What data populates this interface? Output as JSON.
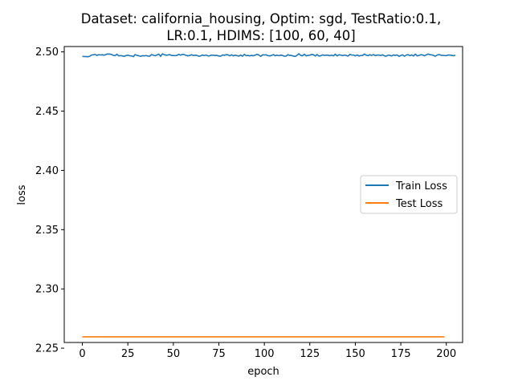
{
  "chart_data": {
    "type": "line",
    "title_lines": [
      "Dataset: california_housing, Optim: sgd, TestRatio:0.1,",
      "LR:0.1, HDIMS: [100, 60, 40]"
    ],
    "xlabel": "epoch",
    "ylabel": "loss",
    "xlim": [
      -9.95,
      208.95
    ],
    "ylim": [
      2.2548,
      2.5045
    ],
    "xticks": [
      0,
      25,
      50,
      75,
      100,
      125,
      150,
      175,
      200
    ],
    "xtick_labels": [
      "0",
      "25",
      "50",
      "75",
      "100",
      "125",
      "150",
      "175",
      "200"
    ],
    "yticks": [
      2.25,
      2.3,
      2.35,
      2.4,
      2.45,
      2.5
    ],
    "ytick_labels": [
      "2.25",
      "2.30",
      "2.35",
      "2.40",
      "2.45",
      "2.50"
    ],
    "grid": false,
    "legend_position": "center-right",
    "series": [
      {
        "name": "Train Loss",
        "color": "#1f77b4",
        "x_start": 0,
        "x_step": 1,
        "values": [
          2.4962,
          2.4961,
          2.496,
          2.4959,
          2.4962,
          2.4973,
          2.4975,
          2.4978,
          2.497,
          2.4976,
          2.4974,
          2.4975,
          2.4972,
          2.4978,
          2.4982,
          2.4981,
          2.4978,
          2.4971,
          2.4968,
          2.498,
          2.4966,
          2.4969,
          2.4966,
          2.4962,
          2.4969,
          2.4972,
          2.4967,
          2.4966,
          2.496,
          2.4977,
          2.497,
          2.4967,
          2.4962,
          2.4968,
          2.4966,
          2.4969,
          2.4965,
          2.4963,
          2.4977,
          2.4972,
          2.4967,
          2.4973,
          2.4981,
          2.4962,
          2.4983,
          2.4976,
          2.4972,
          2.4973,
          2.4977,
          2.4969,
          2.4969,
          2.4968,
          2.497,
          2.4979,
          2.4972,
          2.4979,
          2.4977,
          2.497,
          2.4967,
          2.4969,
          2.4976,
          2.497,
          2.4972,
          2.497,
          2.4963,
          2.4966,
          2.4974,
          2.4969,
          2.4973,
          2.4966,
          2.4967,
          2.4972,
          2.4971,
          2.4969,
          2.497,
          2.4965,
          2.4963,
          2.4974,
          2.4971,
          2.4976,
          2.4975,
          2.4967,
          2.4975,
          2.4966,
          2.4972,
          2.4968,
          2.4964,
          2.4973,
          2.4963,
          2.4979,
          2.4968,
          2.497,
          2.4966,
          2.497,
          2.4967,
          2.4972,
          2.4979,
          2.4973,
          2.4962,
          2.4975,
          2.4973,
          2.4975,
          2.4968,
          2.4966,
          2.497,
          2.4977,
          2.4967,
          2.4972,
          2.4968,
          2.4972,
          2.497,
          2.4963,
          2.4965,
          2.4976,
          2.497,
          2.497,
          2.4964,
          2.4962,
          2.4971,
          2.4984,
          2.497,
          2.4967,
          2.498,
          2.4966,
          2.497,
          2.4972,
          2.4978,
          2.4976,
          2.4965,
          2.4977,
          2.4965,
          2.4967,
          2.4975,
          2.497,
          2.4972,
          2.4973,
          2.4967,
          2.4972,
          2.4966,
          2.498,
          2.4966,
          2.4975,
          2.4973,
          2.4968,
          2.4973,
          2.497,
          2.4964,
          2.4978,
          2.4974,
          2.4973,
          2.4966,
          2.4974,
          2.4965,
          2.4969,
          2.497,
          2.4981,
          2.4972,
          2.4968,
          2.4976,
          2.497,
          2.4977,
          2.4968,
          2.4973,
          2.4973,
          2.4969,
          2.4975,
          2.4966,
          2.4963,
          2.4973,
          2.497,
          2.4966,
          2.4974,
          2.497,
          2.4974,
          2.4962,
          2.497,
          2.4975,
          2.4963,
          2.4973,
          2.4976,
          2.4968,
          2.4974,
          2.4965,
          2.4981,
          2.4966,
          2.497,
          2.4976,
          2.4974,
          2.4967,
          2.4974,
          2.4982,
          2.4976,
          2.4974,
          2.497,
          2.4963,
          2.4973,
          2.4977,
          2.4972,
          2.497,
          2.4969,
          2.4968,
          2.4974,
          2.4973,
          2.497,
          2.4967,
          2.4972
        ]
      },
      {
        "name": "Test Loss",
        "color": "#ff7f0e",
        "x_start": 0,
        "x_step": 1,
        "values": [
          2.2596,
          2.2596,
          2.2596,
          2.2596,
          2.2596,
          2.2596,
          2.2596,
          2.2596,
          2.2596,
          2.2596,
          2.2596,
          2.2596,
          2.2596,
          2.2596,
          2.2596,
          2.2596,
          2.2596,
          2.2596,
          2.2596,
          2.2596,
          2.2596,
          2.2596,
          2.2596,
          2.2596,
          2.2596,
          2.2596,
          2.2596,
          2.2596,
          2.2596,
          2.2596,
          2.2596,
          2.2596,
          2.2596,
          2.2596,
          2.2596,
          2.2596,
          2.2596,
          2.2596,
          2.2596,
          2.2596,
          2.2596,
          2.2596,
          2.2596,
          2.2596,
          2.2596,
          2.2596,
          2.2596,
          2.2596,
          2.2596,
          2.2596,
          2.2596,
          2.2596,
          2.2596,
          2.2596,
          2.2596,
          2.2596,
          2.2596,
          2.2596,
          2.2596,
          2.2596,
          2.2596,
          2.2596,
          2.2596,
          2.2596,
          2.2596,
          2.2596,
          2.2596,
          2.2596,
          2.2596,
          2.2596,
          2.2596,
          2.2596,
          2.2596,
          2.2596,
          2.2596,
          2.2596,
          2.2596,
          2.2596,
          2.2596,
          2.2596,
          2.2596,
          2.2596,
          2.2596,
          2.2596,
          2.2596,
          2.2596,
          2.2596,
          2.2596,
          2.2596,
          2.2596,
          2.2596,
          2.2596,
          2.2596,
          2.2596,
          2.2596,
          2.2596,
          2.2596,
          2.2596,
          2.2596,
          2.2596,
          2.2596,
          2.2596,
          2.2596,
          2.2596,
          2.2596,
          2.2596,
          2.2596,
          2.2596,
          2.2596,
          2.2596,
          2.2596,
          2.2596,
          2.2596,
          2.2596,
          2.2596,
          2.2596,
          2.2596,
          2.2596,
          2.2596,
          2.2596,
          2.2596,
          2.2596,
          2.2596,
          2.2596,
          2.2596,
          2.2596,
          2.2596,
          2.2596,
          2.2596,
          2.2596,
          2.2596,
          2.2596,
          2.2596,
          2.2596,
          2.2596,
          2.2596,
          2.2596,
          2.2596,
          2.2596,
          2.2596,
          2.2596,
          2.2596,
          2.2596,
          2.2596,
          2.2596,
          2.2596,
          2.2596,
          2.2596,
          2.2596,
          2.2596,
          2.2596,
          2.2596,
          2.2596,
          2.2596,
          2.2596,
          2.2596,
          2.2596,
          2.2596,
          2.2596,
          2.2596,
          2.2596,
          2.2596,
          2.2596,
          2.2596,
          2.2596,
          2.2596,
          2.2596,
          2.2596,
          2.2596,
          2.2596,
          2.2596,
          2.2596,
          2.2596,
          2.2596,
          2.2596,
          2.2596,
          2.2596,
          2.2596,
          2.2596,
          2.2596,
          2.2596,
          2.2596,
          2.2596,
          2.2596,
          2.2596,
          2.2596,
          2.2596,
          2.2596,
          2.2596,
          2.2596,
          2.2596,
          2.2596,
          2.2596,
          2.2596,
          2.2596,
          2.2596,
          2.2596,
          2.2596,
          2.2596,
          2.2596
        ]
      }
    ]
  }
}
